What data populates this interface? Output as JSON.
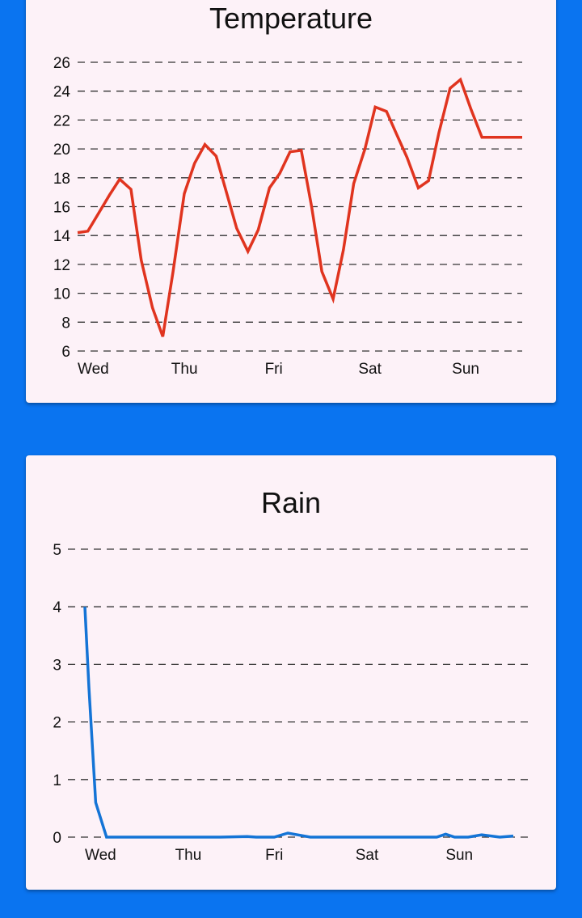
{
  "colors": {
    "background": "#0a74f0",
    "card": "#fdf2f8",
    "temperature_line": "#e0341f",
    "rain_line": "#1474d6",
    "grid": "#333333"
  },
  "chart_data": [
    {
      "id": "temperature",
      "type": "line",
      "title": "Temperature",
      "xlabel": "",
      "ylabel": "",
      "ylim": [
        6,
        26
      ],
      "yticks": [
        6,
        8,
        10,
        12,
        14,
        16,
        18,
        20,
        22,
        24,
        26
      ],
      "xlim": [
        0,
        4.75
      ],
      "xticks": [
        {
          "value": 0,
          "label": "Wed"
        },
        {
          "value": 1,
          "label": "Thu"
        },
        {
          "value": 2,
          "label": "Fri"
        },
        {
          "value": 3,
          "label": "Sat"
        },
        {
          "value": 4,
          "label": "Sun"
        }
      ],
      "grid": "horizontal-dashed",
      "series": [
        {
          "color": "#e0341f",
          "x": [
            0,
            0.11,
            0.23,
            0.34,
            0.45,
            0.57,
            0.68,
            0.8,
            0.91,
            1.02,
            1.14,
            1.25,
            1.36,
            1.48,
            1.59,
            1.7,
            1.82,
            1.93,
            2.05,
            2.16,
            2.27,
            2.39,
            2.5,
            2.61,
            2.73,
            2.84,
            2.95,
            3.07,
            3.18,
            3.3,
            3.41,
            3.52,
            3.64,
            3.75,
            3.86,
            3.98,
            4.09,
            4.2,
            4.32,
            4.43,
            4.55,
            4.66,
            4.75
          ],
          "y": [
            14.2,
            14.3,
            15.6,
            16.8,
            17.9,
            17.2,
            12.3,
            9.0,
            7.0,
            11.5,
            16.9,
            19.0,
            20.3,
            19.5,
            17.0,
            14.5,
            12.9,
            14.4,
            17.3,
            18.3,
            19.8,
            19.9,
            16.0,
            11.5,
            9.6,
            13.0,
            17.6,
            20.0,
            22.9,
            22.6,
            21.0,
            19.4,
            17.3,
            17.8,
            21.1,
            24.2,
            24.8,
            22.8,
            20.8,
            20.8,
            20.8,
            20.8,
            20.8
          ]
        }
      ]
    },
    {
      "id": "rain",
      "type": "line",
      "title": "Rain",
      "xlabel": "",
      "ylabel": "",
      "ylim": [
        0,
        5
      ],
      "yticks": [
        0,
        1,
        2,
        3,
        4,
        5
      ],
      "xlim": [
        0,
        4.75
      ],
      "xticks": [
        {
          "value": 0,
          "label": "Wed"
        },
        {
          "value": 1,
          "label": "Thu"
        },
        {
          "value": 2,
          "label": "Fri"
        },
        {
          "value": 3,
          "label": "Sat"
        },
        {
          "value": 4,
          "label": "Sun"
        }
      ],
      "grid": "horizontal-dashed",
      "series": [
        {
          "color": "#1474d6",
          "x": [
            0,
            0.045,
            0.12,
            0.24,
            0.5,
            1.0,
            1.5,
            1.8,
            1.9,
            2.1,
            2.25,
            2.5,
            3.0,
            3.5,
            3.9,
            4.0,
            4.1,
            4.25,
            4.4,
            4.6,
            4.75
          ],
          "y": [
            4.0,
            2.6,
            0.6,
            0.0,
            0.0,
            0.0,
            0.0,
            0.01,
            0.0,
            0.0,
            0.07,
            0.0,
            0.0,
            0.0,
            0.0,
            0.05,
            0.0,
            0.0,
            0.04,
            0.0,
            0.02
          ]
        }
      ]
    }
  ]
}
